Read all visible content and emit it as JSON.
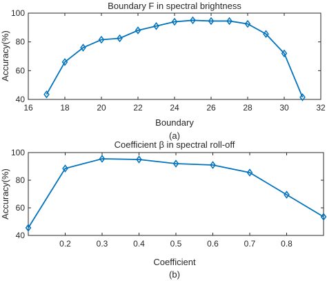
{
  "chart_data": [
    {
      "type": "line",
      "title": "Boundary F in spectral brightness",
      "xlabel": "Boundary",
      "ylabel": "Accuracy(%)",
      "caption": "(a)",
      "xlim": [
        16,
        32
      ],
      "ylim": [
        40,
        100
      ],
      "xticks": [
        16,
        18,
        20,
        22,
        24,
        26,
        28,
        30,
        32
      ],
      "yticks": [
        40,
        60,
        80,
        100
      ],
      "x": [
        17,
        18,
        19,
        20,
        21,
        22,
        23,
        24,
        25,
        26,
        27,
        28,
        29,
        30,
        31
      ],
      "series": [
        {
          "values": [
            43.5,
            66,
            76,
            81.5,
            82.5,
            88,
            91,
            94,
            95,
            94.5,
            94.5,
            92.5,
            85.5,
            72,
            41.5
          ]
        }
      ],
      "grid": false,
      "marker": "diamond",
      "color": "#0072BD"
    },
    {
      "type": "line",
      "title": "Coefficient β in spectral roll-off",
      "xlabel": "Coefficient",
      "ylabel": "Accuracy(%)",
      "caption": "(b)",
      "xlim": [
        0.1,
        0.9
      ],
      "ylim": [
        40,
        100
      ],
      "xticks": [
        0.2,
        0.3,
        0.4,
        0.5,
        0.6,
        0.7,
        0.8
      ],
      "yticks": [
        40,
        60,
        80,
        100
      ],
      "x": [
        0.1,
        0.2,
        0.3,
        0.4,
        0.5,
        0.6,
        0.7,
        0.8,
        0.9
      ],
      "series": [
        {
          "values": [
            45.5,
            88.5,
            95.5,
            95,
            92,
            91,
            85.5,
            69.5,
            53.5
          ]
        }
      ],
      "grid": false,
      "marker": "diamond",
      "color": "#0072BD"
    }
  ]
}
